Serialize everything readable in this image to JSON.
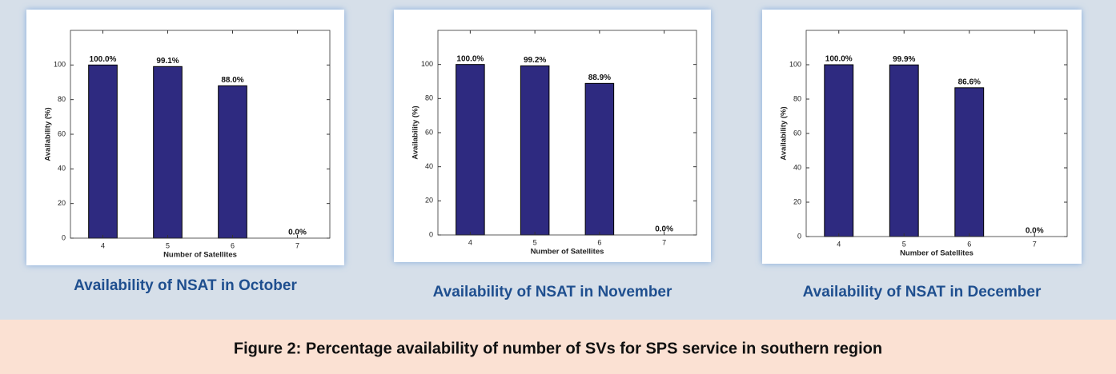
{
  "chart_data": [
    {
      "type": "bar",
      "title": "Availability of NSAT in October",
      "xlabel": "Number of Satellites",
      "ylabel": "Availability (%)",
      "categories": [
        "4",
        "5",
        "6",
        "7"
      ],
      "values": [
        100,
        99.1,
        88,
        0
      ],
      "value_labels": [
        "100.0%",
        "99.1%",
        "88.0%",
        "0.0%"
      ],
      "color": "#2e2a80",
      "ylim": [
        0,
        120
      ],
      "yticks": [
        0,
        20,
        40,
        60,
        80,
        100
      ]
    },
    {
      "type": "bar",
      "title": "Availability of NSAT in November",
      "xlabel": "Number of Satellites",
      "ylabel": "Availability (%)",
      "categories": [
        "4",
        "5",
        "6",
        "7"
      ],
      "values": [
        100,
        99.2,
        88.9,
        0
      ],
      "value_labels": [
        "100.0%",
        "99.2%",
        "88.9%",
        "0.0%"
      ],
      "color": "#2e2a80",
      "ylim": [
        0,
        120
      ],
      "yticks": [
        0,
        20,
        40,
        60,
        80,
        100
      ]
    },
    {
      "type": "bar",
      "title": "Availability of NSAT in December",
      "xlabel": "Number of Satellites",
      "ylabel": "Availability (%)",
      "categories": [
        "4",
        "5",
        "6",
        "7"
      ],
      "values": [
        100,
        99.9,
        86.6,
        0
      ],
      "value_labels": [
        "100.0%",
        "99.9%",
        "86.6%",
        "0.0%"
      ],
      "color": "#2e2a80",
      "ylim": [
        0,
        120
      ],
      "yticks": [
        0,
        20,
        40,
        60,
        80,
        100
      ]
    }
  ],
  "caption": "Figure 2: Percentage availability of number of SVs for SPS service in southern region"
}
